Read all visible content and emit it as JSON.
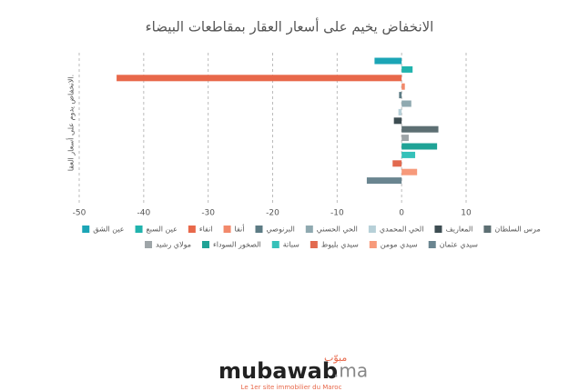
{
  "chart_data": {
    "type": "bar",
    "orientation": "horizontal",
    "title": "الانخفاض يخيم على أسعار العقار بمقاطعات البيضاء",
    "ylabel": "الانخفاض يدوم على أسعار العقا.",
    "xlim": [
      -50,
      10
    ],
    "xticks": [
      -50,
      -40,
      -30,
      -20,
      -10,
      0,
      10
    ],
    "grid": true,
    "series": [
      {
        "name": "عين الشق",
        "color": "#1ba5b6",
        "values": [
          -4.2
        ]
      },
      {
        "name": "عين السبع",
        "color": "#21b3ad",
        "values": [
          1.7
        ]
      },
      {
        "name": "انفاء",
        "color": "#e8684a",
        "values": [
          -44.2
        ]
      },
      {
        "name": "أنفا",
        "color": "#f2896b",
        "values": [
          0.5
        ]
      },
      {
        "name": "البرنوصي",
        "color": "#5c7b84",
        "values": [
          -0.4
        ]
      },
      {
        "name": "الحي الحسني",
        "color": "#8fa9b0",
        "values": [
          1.5
        ]
      },
      {
        "name": "الحي المحمدي",
        "color": "#b7d0d8",
        "values": [
          -0.5
        ]
      },
      {
        "name": "المعاريف",
        "color": "#3d4d52",
        "values": [
          -1.2
        ]
      },
      {
        "name": "مرس السلطان",
        "color": "#5d6f73",
        "values": [
          5.7
        ]
      },
      {
        "name": "مولاي رشيد",
        "color": "#9ea5a8",
        "values": [
          1.1
        ]
      },
      {
        "name": "الصخور السوداء",
        "color": "#1fa396",
        "values": [
          5.5
        ]
      },
      {
        "name": "سباتة",
        "color": "#35c1b9",
        "values": [
          2.1
        ]
      },
      {
        "name": "سيدي بليوط",
        "color": "#e26a4f",
        "values": [
          -1.4
        ]
      },
      {
        "name": "سيدي مومن",
        "color": "#f79a7b",
        "values": [
          2.4
        ]
      },
      {
        "name": "سيدي عثمان",
        "color": "#6a8590",
        "values": [
          -5.4
        ]
      }
    ]
  },
  "logo": {
    "arabic": "مبوّب",
    "name": "mubawab",
    "suffix": ".ma",
    "tagline": "Le 1er site immobilier du Maroc"
  }
}
